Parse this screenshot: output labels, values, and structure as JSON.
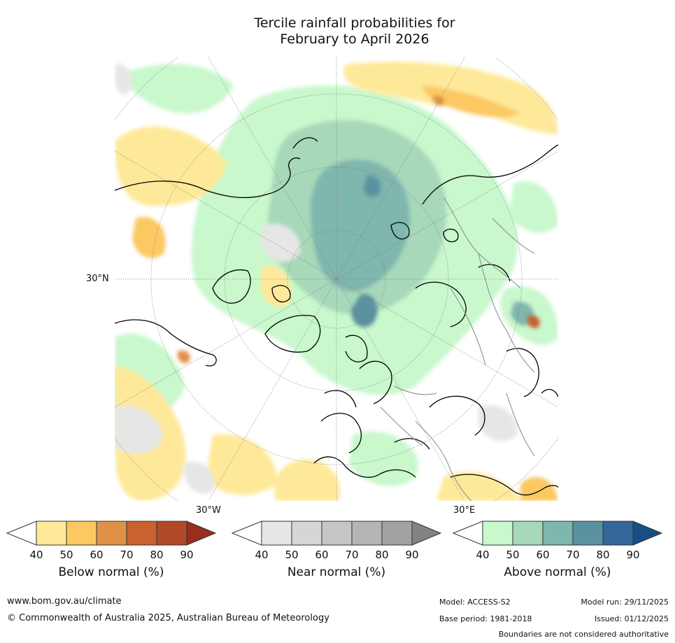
{
  "title": {
    "line1": "Tercile rainfall probabilities for",
    "line2": "February to April 2026"
  },
  "map": {
    "lat_label": "30°N",
    "lon_labels": [
      "30°W",
      "30°E"
    ],
    "projection": "north-polar-stereographic",
    "features": [
      "coastlines",
      "country-boundaries",
      "graticule"
    ]
  },
  "colorbars": [
    {
      "title": "Below normal (%)",
      "ticks": [
        "40",
        "50",
        "60",
        "70",
        "80",
        "90"
      ],
      "colors": [
        "#ffffff",
        "#fee99a",
        "#fbc862",
        "#df9247",
        "#c9622e",
        "#b04a28",
        "#982e1c"
      ]
    },
    {
      "title": "Near normal (%)",
      "ticks": [
        "40",
        "50",
        "60",
        "70",
        "80",
        "90"
      ],
      "colors": [
        "#ffffff",
        "#e6e6e6",
        "#d6d6d6",
        "#c6c6c6",
        "#b5b5b5",
        "#a2a2a2",
        "#838383"
      ]
    },
    {
      "title": "Above normal (%)",
      "ticks": [
        "40",
        "50",
        "60",
        "70",
        "80",
        "90"
      ],
      "colors": [
        "#ffffff",
        "#c8f8cc",
        "#a6d8b9",
        "#7fb6ae",
        "#5a92a0",
        "#33679a",
        "#174e84"
      ]
    }
  ],
  "footer": {
    "url": "www.bom.gov.au/climate",
    "copyright": "© Commonwealth of Australia 2025, Australian Bureau of Meteorology",
    "model": "Model: ACCESS-S2",
    "base_period": "Base period: 1981-2018",
    "model_run": "Model run: 29/11/2025",
    "issued": "Issued: 01/12/2025",
    "disclaimer": "Boundaries are not considered authoritative"
  }
}
